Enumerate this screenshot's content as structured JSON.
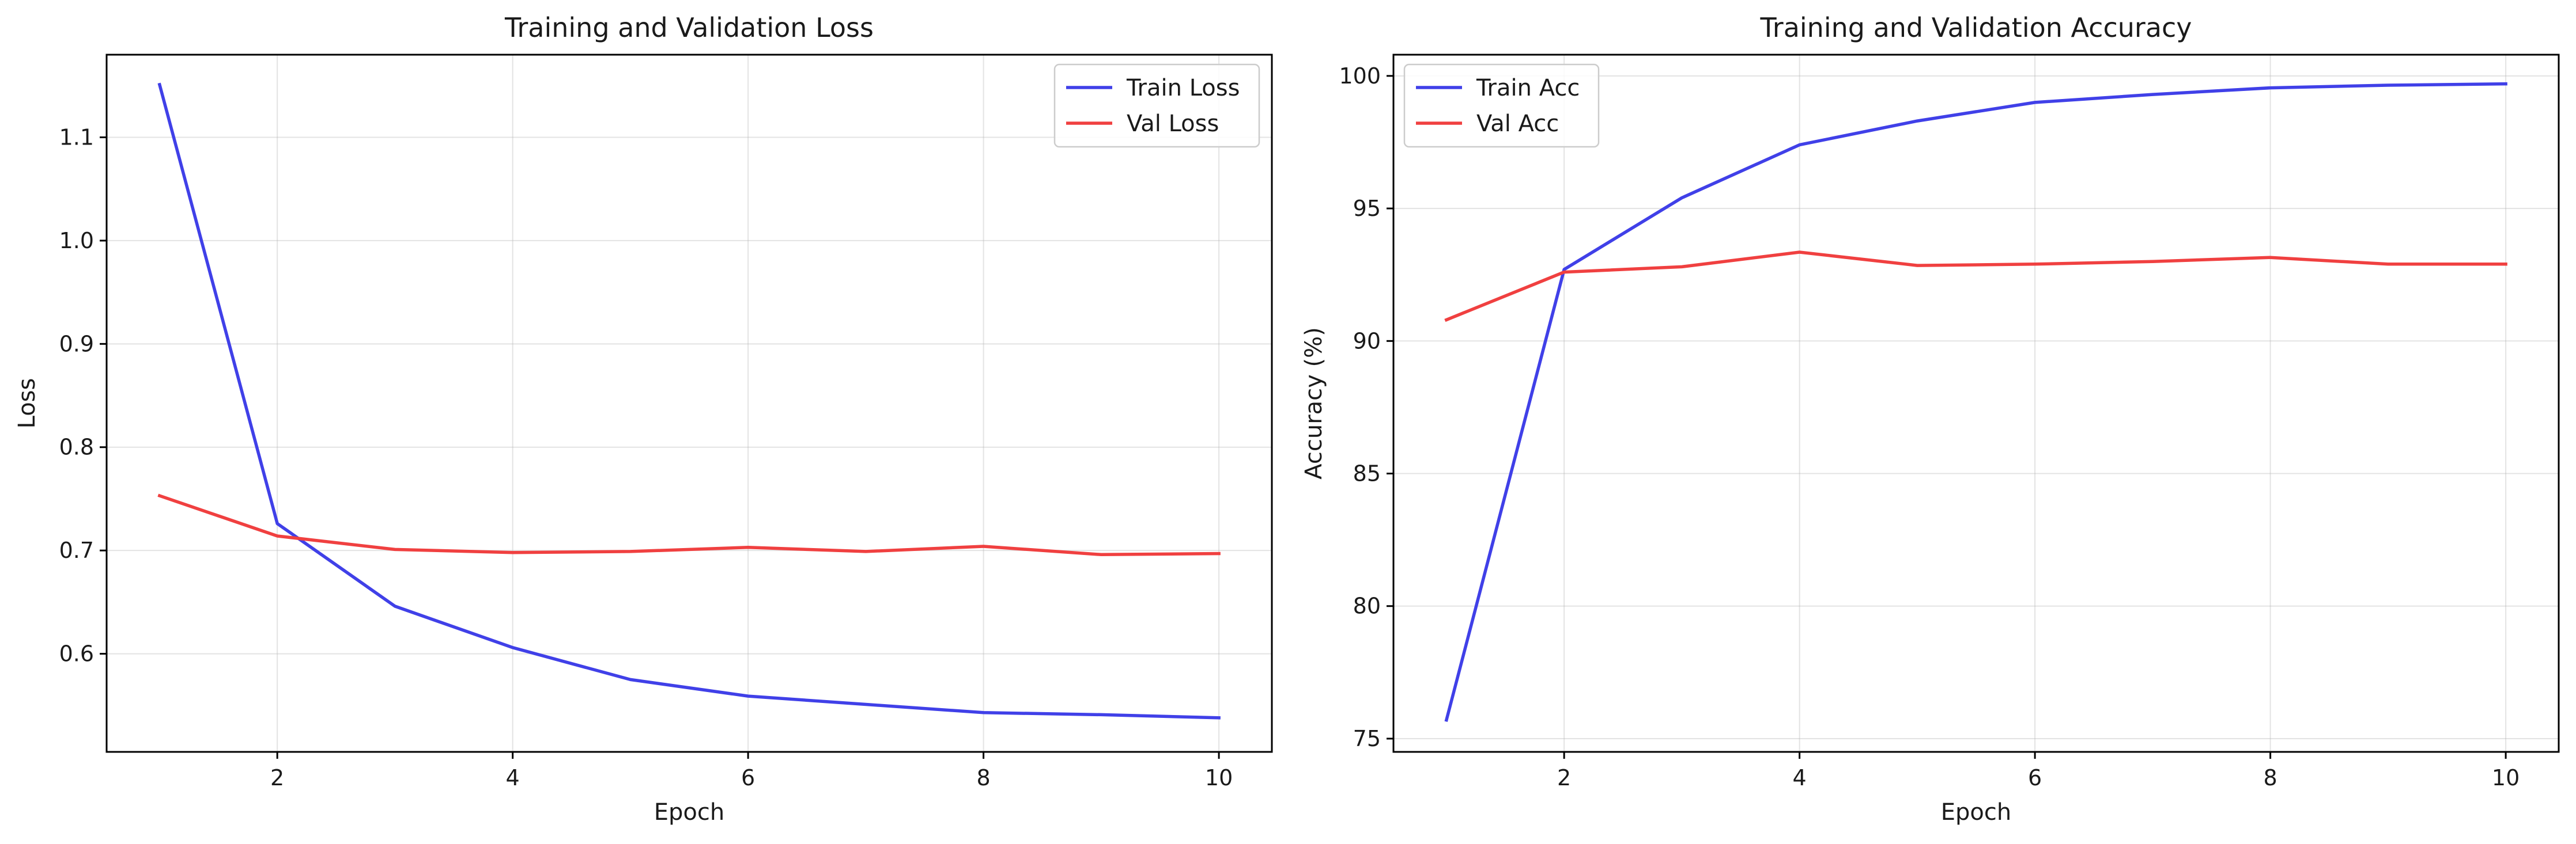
{
  "chart_data": [
    {
      "type": "line",
      "title": "Training and Validation Loss",
      "xlabel": "Epoch",
      "ylabel": "Loss",
      "xlim": [
        0.55,
        10.45
      ],
      "ylim": [
        0.505,
        1.18
      ],
      "xticks": [
        2,
        4,
        6,
        8,
        10
      ],
      "yticks": [
        0.6,
        0.7,
        0.8,
        0.9,
        1.0,
        1.1
      ],
      "ytick_decimals": 1,
      "grid": true,
      "legend_position": "top-right",
      "x": [
        1,
        2,
        3,
        4,
        5,
        6,
        7,
        8,
        9,
        10
      ],
      "series": [
        {
          "name": "Train Loss",
          "color": "#4040e8",
          "values": [
            1.151,
            0.726,
            0.646,
            0.606,
            0.575,
            0.559,
            0.551,
            0.543,
            0.541,
            0.538
          ]
        },
        {
          "name": "Val Loss",
          "color": "#f04040",
          "values": [
            0.753,
            0.714,
            0.701,
            0.698,
            0.699,
            0.703,
            0.699,
            0.704,
            0.696,
            0.697
          ]
        }
      ]
    },
    {
      "type": "line",
      "title": "Training and Validation Accuracy",
      "xlabel": "Epoch",
      "ylabel": "Accuracy (%)",
      "xlim": [
        0.55,
        10.45
      ],
      "ylim": [
        74.5,
        100.8
      ],
      "xticks": [
        2,
        4,
        6,
        8,
        10
      ],
      "yticks": [
        75,
        80,
        85,
        90,
        95,
        100
      ],
      "ytick_decimals": 0,
      "grid": true,
      "legend_position": "top-left",
      "x": [
        1,
        2,
        3,
        4,
        5,
        6,
        7,
        8,
        9,
        10
      ],
      "series": [
        {
          "name": "Train Acc",
          "color": "#4040e8",
          "values": [
            75.7,
            92.7,
            95.4,
            97.4,
            98.3,
            99.0,
            99.3,
            99.55,
            99.65,
            99.7
          ]
        },
        {
          "name": "Val Acc",
          "color": "#f04040",
          "values": [
            90.8,
            92.6,
            92.8,
            93.35,
            92.85,
            92.9,
            93.0,
            93.15,
            92.9,
            92.9
          ]
        }
      ]
    }
  ]
}
